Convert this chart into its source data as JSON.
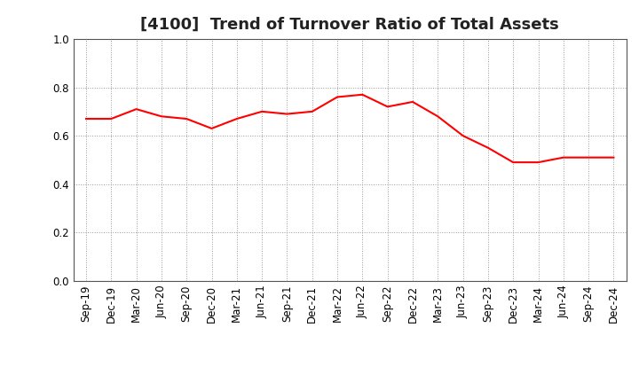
{
  "title": "[4100]  Trend of Turnover Ratio of Total Assets",
  "x_labels": [
    "Sep-19",
    "Dec-19",
    "Mar-20",
    "Jun-20",
    "Sep-20",
    "Dec-20",
    "Mar-21",
    "Jun-21",
    "Sep-21",
    "Dec-21",
    "Mar-22",
    "Jun-22",
    "Sep-22",
    "Dec-22",
    "Mar-23",
    "Jun-23",
    "Sep-23",
    "Dec-23",
    "Mar-24",
    "Jun-24",
    "Sep-24",
    "Dec-24"
  ],
  "y_values": [
    0.67,
    0.67,
    0.71,
    0.68,
    0.67,
    0.63,
    0.67,
    0.7,
    0.69,
    0.7,
    0.76,
    0.77,
    0.72,
    0.74,
    0.68,
    0.6,
    0.55,
    0.49,
    0.49,
    0.51,
    0.51,
    0.51
  ],
  "line_color": "#FF0000",
  "line_width": 1.5,
  "ylim": [
    0.0,
    1.0
  ],
  "yticks": [
    0.0,
    0.2,
    0.4,
    0.6,
    0.8,
    1.0
  ],
  "grid_color": "#999999",
  "background_color": "#ffffff",
  "title_fontsize": 13,
  "tick_fontsize": 8.5
}
